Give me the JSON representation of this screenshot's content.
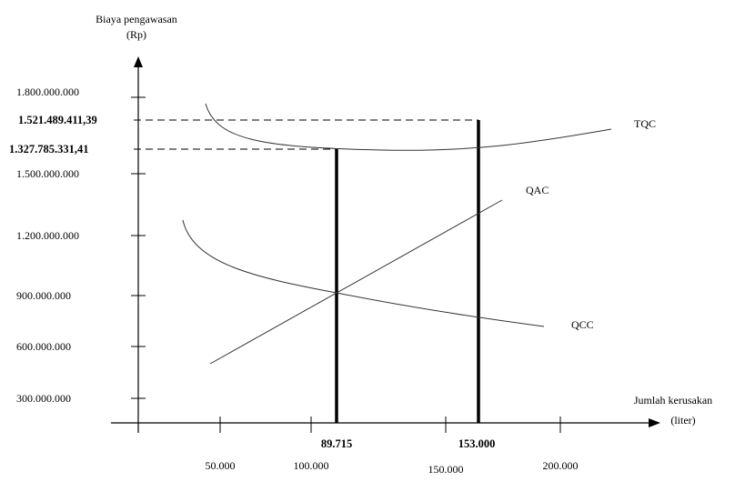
{
  "chart_data": {
    "type": "line",
    "ylabel_line1": "Biaya pengawasan",
    "ylabel_line2": "(Rp)",
    "xlabel_line1": "Jumlah kerusakan",
    "xlabel_line2": "(liter)",
    "y_ticks": [
      {
        "label": "1.800.000.000",
        "value": 1800000000
      },
      {
        "label": "1.500.000.000",
        "value": 1500000000
      },
      {
        "label": "1.200.000.000",
        "value": 1200000000
      },
      {
        "label": "900.000.000",
        "value": 900000000
      },
      {
        "label": "600.000.000",
        "value": 600000000
      },
      {
        "label": "300.000.000",
        "value": 300000000
      }
    ],
    "x_ticks": [
      {
        "label": "50.000",
        "value": 50000
      },
      {
        "label": "100.000",
        "value": 100000
      },
      {
        "label": "150.000",
        "value": 150000
      },
      {
        "label": "200.000",
        "value": 200000
      }
    ],
    "highlights": {
      "x": [
        {
          "label": "89.715",
          "value": 89715
        },
        {
          "label": "153.000",
          "value": 153000
        }
      ],
      "y": [
        {
          "label": "1.521.489.411,39",
          "value": 1521489411.39
        },
        {
          "label": "1.327.785.331,41",
          "value": 1327785331.41
        }
      ]
    },
    "series": [
      {
        "name": "TQC",
        "x": [
          30000,
          50000,
          70000,
          89715,
          110000,
          130000,
          153000,
          180000,
          220000
        ],
        "y": [
          1650000000,
          1420000000,
          1360000000,
          1327785331.41,
          1330000000,
          1345000000,
          1521489411.39,
          1410000000,
          1460000000
        ]
      },
      {
        "name": "QAC",
        "x": [
          30000,
          89715,
          153000,
          175000
        ],
        "y": [
          400000000,
          900000000,
          1350000000,
          1500000000
        ]
      },
      {
        "name": "QCC",
        "x": [
          20000,
          45000,
          70000,
          89715,
          120000,
          153000,
          190000
        ],
        "y": [
          1250000000,
          1080000000,
          970000000,
          900000000,
          830000000,
          780000000,
          730000000
        ]
      }
    ]
  }
}
